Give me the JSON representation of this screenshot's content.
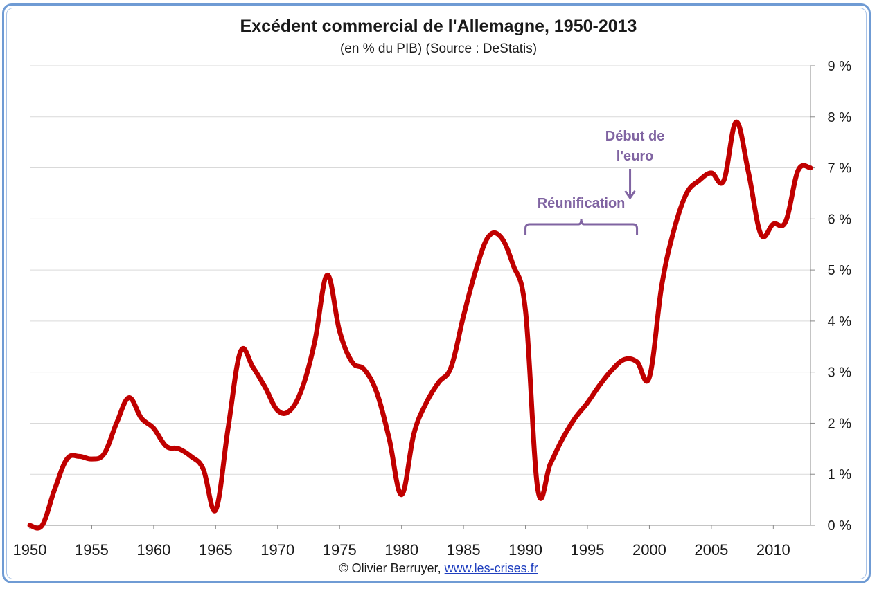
{
  "chart_data": {
    "type": "line",
    "title": "Excédent commercial de l'Allemagne, 1950-2013",
    "subtitle": "(en % du PIB) (Source : DeStatis)",
    "xlabel": "",
    "ylabel": "",
    "xlim": [
      1950,
      2013
    ],
    "ylim": [
      0,
      9
    ],
    "x_ticks": [
      "1950",
      "1955",
      "1960",
      "1965",
      "1970",
      "1975",
      "1980",
      "1985",
      "1990",
      "1995",
      "2000",
      "2005",
      "2010"
    ],
    "y_ticks": [
      "0 %",
      "1 %",
      "2 %",
      "3 %",
      "4 %",
      "5 %",
      "6 %",
      "7 %",
      "8 %",
      "9 %"
    ],
    "y_axis_position": "right",
    "grid": true,
    "line_color": "#c00000",
    "series": [
      {
        "x": [
          1950,
          1951,
          1952,
          1953,
          1954,
          1955,
          1956,
          1957,
          1958,
          1959,
          1960,
          1961,
          1962,
          1963,
          1964,
          1965,
          1966,
          1967,
          1968,
          1969,
          1970,
          1971,
          1972,
          1973,
          1974,
          1975,
          1976,
          1977,
          1978,
          1979,
          1980,
          1981,
          1982,
          1983,
          1984,
          1985,
          1986,
          1987,
          1988,
          1989,
          1990,
          1991,
          1992,
          1993,
          1994,
          1995,
          1996,
          1997,
          1998,
          1999,
          2000,
          2001,
          2002,
          2003,
          2004,
          2005,
          2006,
          2007,
          2008,
          2009,
          2010,
          2011,
          2012,
          2013
        ],
        "values": [
          0.0,
          0.0,
          0.7,
          1.3,
          1.35,
          1.3,
          1.4,
          2.0,
          2.5,
          2.1,
          1.9,
          1.55,
          1.5,
          1.35,
          1.1,
          0.3,
          1.9,
          3.4,
          3.1,
          2.7,
          2.25,
          2.25,
          2.7,
          3.6,
          4.9,
          3.8,
          3.2,
          3.05,
          2.6,
          1.7,
          0.6,
          1.8,
          2.4,
          2.8,
          3.1,
          4.1,
          5.0,
          5.65,
          5.65,
          5.1,
          4.2,
          0.7,
          1.2,
          1.7,
          2.1,
          2.4,
          2.75,
          3.05,
          3.25,
          3.2,
          2.9,
          4.7,
          5.8,
          6.5,
          6.75,
          6.9,
          6.75,
          7.9,
          6.9,
          5.7,
          5.9,
          5.95,
          6.95,
          7.0
        ]
      }
    ],
    "annotations": [
      {
        "text_line1": "Début de",
        "text_line2": "l'euro",
        "color": "#8064a2",
        "points_to_year": 1999
      },
      {
        "text": "Réunification",
        "color": "#8064a2",
        "span": [
          1990,
          1999
        ]
      }
    ]
  },
  "credit": {
    "prefix": "© Olivier Berruyer,",
    "link": "www.les-crises.fr"
  }
}
